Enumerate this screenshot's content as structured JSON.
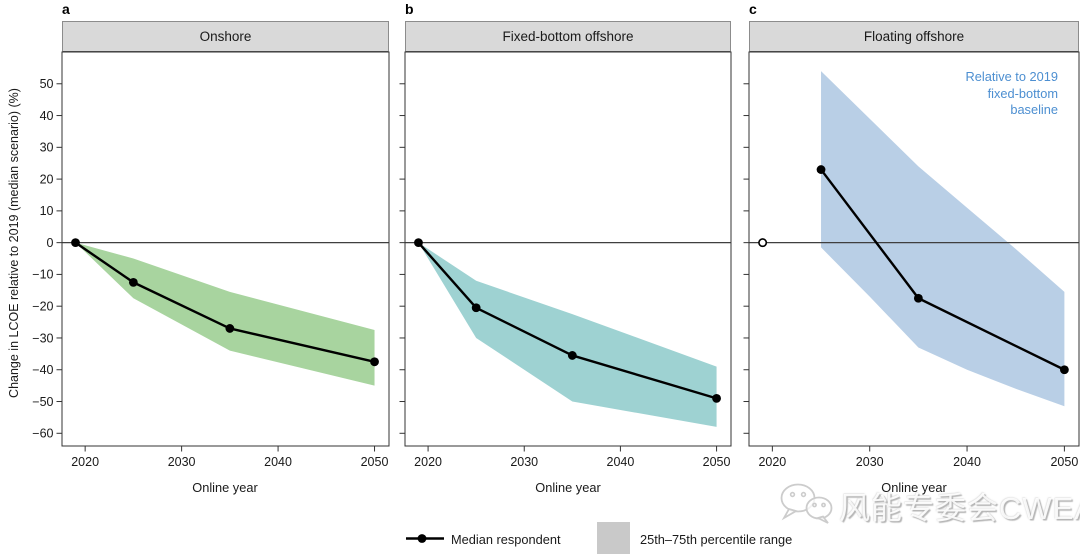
{
  "figure": {
    "ylabel": "Change in LCOE relative to 2019 (median scenario) (%)",
    "xlabel": "Online year",
    "legend": {
      "median_label": "Median respondent",
      "band_label": "25th–75th percentile range"
    },
    "watermark_text": "风能专委会CWEA",
    "colors": {
      "onshore_band": "#a8d49f",
      "fixed_bottom_band": "#9ed2d2",
      "floating_band": "#b9cfe6",
      "annotation_blue": "#4d8fd1",
      "header_bg": "#d9d9d9",
      "legend_box": "#c9c9c9",
      "median_line": "#000000",
      "zero_line": "#3f3f3f"
    }
  },
  "chart_data": [
    {
      "type": "line",
      "panel_letter": "a",
      "title": "Onshore",
      "xlabel": "Online year",
      "xlim": [
        2017.6,
        2051.5
      ],
      "ylim": [
        -64,
        60
      ],
      "xticks": [
        2020,
        2030,
        2040,
        2050
      ],
      "yticks": [
        50,
        40,
        30,
        20,
        10,
        0,
        -10,
        -20,
        -30,
        -40,
        -50,
        -60
      ],
      "zero_line": 0,
      "median": {
        "x": [
          2019,
          2025,
          2035,
          2050
        ],
        "y": [
          0,
          -12.5,
          -27,
          -37.5
        ]
      },
      "band_25_75": {
        "x": [
          2019,
          2025,
          2035,
          2050
        ],
        "upper": [
          0,
          -5,
          -15.5,
          -27.5
        ],
        "lower": [
          0,
          -17.5,
          -34,
          -45
        ]
      },
      "band_color": "#a8d49f"
    },
    {
      "type": "line",
      "panel_letter": "b",
      "title": "Fixed-bottom offshore",
      "xlabel": "Online year",
      "xlim": [
        2017.6,
        2051.5
      ],
      "ylim": [
        -64,
        60
      ],
      "xticks": [
        2020,
        2030,
        2040,
        2050
      ],
      "yticks": [
        50,
        40,
        30,
        20,
        10,
        0,
        -10,
        -20,
        -30,
        -40,
        -50,
        -60
      ],
      "zero_line": 0,
      "median": {
        "x": [
          2019,
          2025,
          2035,
          2050
        ],
        "y": [
          0,
          -20.5,
          -35.5,
          -49
        ]
      },
      "band_25_75": {
        "x": [
          2019,
          2025,
          2035,
          2050
        ],
        "upper": [
          0,
          -12,
          -22.5,
          -39
        ],
        "lower": [
          0,
          -30,
          -50,
          -58
        ]
      },
      "band_color": "#9ed2d2"
    },
    {
      "type": "line",
      "panel_letter": "c",
      "title": "Floating offshore",
      "xlabel": "Online year",
      "xlim": [
        2017.6,
        2051.5
      ],
      "ylim": [
        -64,
        60
      ],
      "xticks": [
        2020,
        2030,
        2040,
        2050
      ],
      "yticks": [
        50,
        40,
        30,
        20,
        10,
        0,
        -10,
        -20,
        -30,
        -40,
        -50,
        -60
      ],
      "zero_line": 0,
      "reference_point": {
        "x": 2019,
        "y": 0,
        "style": "open-circle"
      },
      "median": {
        "x": [
          2025,
          2035,
          2050
        ],
        "y": [
          23,
          -17.5,
          -40
        ]
      },
      "band_25_75": {
        "x": [
          2025,
          2030,
          2035,
          2040,
          2045,
          2050
        ],
        "upper": [
          54,
          39,
          24,
          11,
          -2,
          -15.5
        ],
        "lower": [
          -1.5,
          -17,
          -33,
          -40,
          -46,
          -51.5
        ]
      },
      "annotation": {
        "lines": [
          "Relative to 2019",
          "fixed-bottom",
          "baseline"
        ],
        "color": "#4d8fd1"
      },
      "band_color": "#b9cfe6"
    }
  ]
}
